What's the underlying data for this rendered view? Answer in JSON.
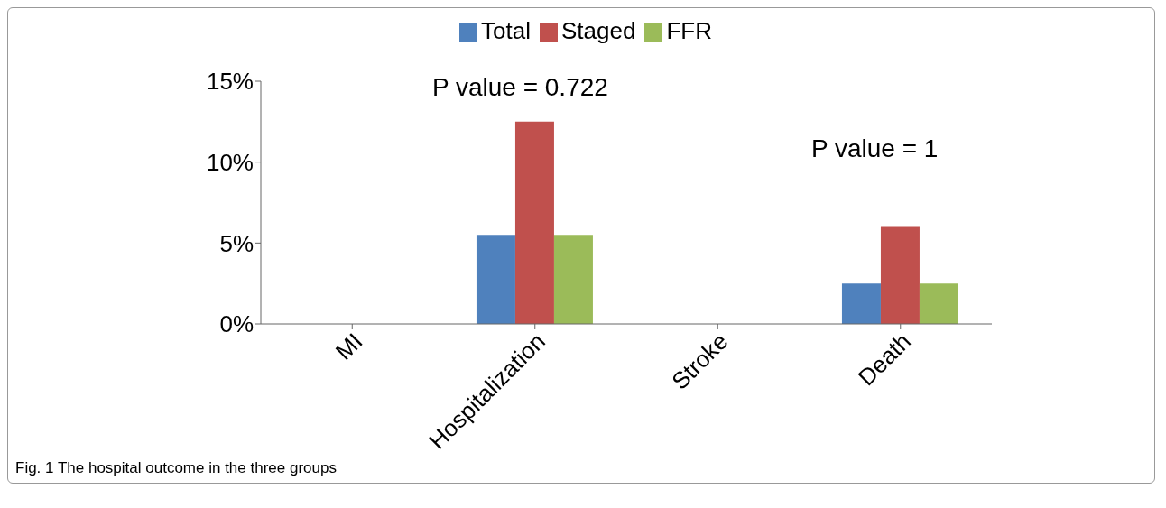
{
  "chart_data": {
    "type": "bar",
    "categories": [
      "MI",
      "Hospitalization",
      "Stroke",
      "Death"
    ],
    "series": [
      {
        "name": "Total",
        "color": "#4f81bd",
        "values": [
          0,
          5.5,
          0,
          2.5
        ]
      },
      {
        "name": "Staged",
        "color": "#c0504d",
        "values": [
          0,
          12.5,
          0,
          6
        ]
      },
      {
        "name": "FFR",
        "color": "#9bbb59",
        "values": [
          0,
          5.5,
          0,
          2.5
        ]
      }
    ],
    "ylim": [
      0,
      15
    ],
    "yticks": [
      {
        "value": 0,
        "label": "0%"
      },
      {
        "value": 5,
        "label": "5%"
      },
      {
        "value": 10,
        "label": "10%"
      },
      {
        "value": 15,
        "label": "15%"
      }
    ],
    "grid": false,
    "legend": "top",
    "annotations": [
      "P value = 0.722",
      "P value = 1",
      "Fig. 1 The hospital outcome in the three groups"
    ]
  }
}
